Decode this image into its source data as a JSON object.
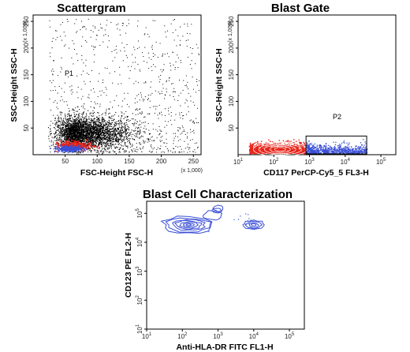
{
  "chart_data": [
    {
      "type": "scatter",
      "title": "Scattergram",
      "xlabel": "FSC-Height FSC-H",
      "ylabel": "SSC-Height SSC-H",
      "x_scale_note": "(x 1,000)",
      "y_scale_note": "(x 1,000)",
      "xlim": [
        0,
        262
      ],
      "ylim": [
        0,
        262
      ],
      "x_ticks": [
        "50",
        "100",
        "150",
        "200",
        "250"
      ],
      "y_ticks": [
        "50",
        "100",
        "150",
        "200",
        "250"
      ],
      "gates": [
        {
          "name": "P1"
        }
      ],
      "series": [
        {
          "color": "#000000",
          "center": [
            72,
            35
          ]
        },
        {
          "color": "#e8241a",
          "center": [
            65,
            18
          ]
        },
        {
          "color": "#3a4fd6",
          "center": [
            55,
            12
          ]
        }
      ]
    },
    {
      "type": "scatter",
      "title": "Blast Gate",
      "xlabel": "CD117 PerCP-Cy5_5 FL3-H",
      "ylabel": "SSC-Height SSC-H",
      "y_scale_note": "(x 1,000)",
      "x_scale": "log",
      "xlim": [
        10,
        262000
      ],
      "ylim": [
        0,
        262
      ],
      "x_ticks": [
        {
          "base": "10",
          "exp": "1"
        },
        {
          "base": "10",
          "exp": "2"
        },
        {
          "base": "10",
          "exp": "3"
        },
        {
          "base": "10",
          "exp": "4"
        },
        {
          "base": "10",
          "exp": "5"
        }
      ],
      "y_ticks": [
        "50",
        "100",
        "150",
        "200",
        "250"
      ],
      "gates": [
        {
          "name": "P2",
          "x": [
            800,
            40000
          ],
          "y": [
            0,
            35
          ]
        }
      ],
      "series": [
        {
          "color": "#e8241a",
          "x_range": [
            20,
            800
          ],
          "y_range": [
            0,
            35
          ]
        },
        {
          "color": "#3a4fd6",
          "x_range": [
            800,
            40000
          ],
          "y_range": [
            0,
            30
          ]
        }
      ]
    },
    {
      "type": "contour",
      "title": "Blast Cell Characterization",
      "xlabel": "Anti-HLA-DR FITC FL1-H",
      "ylabel": "CD123 PE FL2-H",
      "x_scale": "log",
      "y_scale": "log",
      "xlim": [
        10,
        262000
      ],
      "ylim": [
        10,
        262000
      ],
      "x_ticks": [
        {
          "base": "10",
          "exp": "1"
        },
        {
          "base": "10",
          "exp": "2"
        },
        {
          "base": "10",
          "exp": "3"
        },
        {
          "base": "10",
          "exp": "4"
        },
        {
          "base": "10",
          "exp": "5"
        }
      ],
      "y_ticks": [
        {
          "base": "10",
          "exp": "1"
        },
        {
          "base": "10",
          "exp": "2"
        },
        {
          "base": "10",
          "exp": "3"
        },
        {
          "base": "10",
          "exp": "4"
        },
        {
          "base": "10",
          "exp": "5"
        }
      ],
      "series": [
        {
          "color": "#3a4fd6",
          "center": [
            150,
            40000
          ]
        },
        {
          "color": "#3a4fd6",
          "center": [
            10000,
            40000
          ]
        }
      ]
    }
  ]
}
